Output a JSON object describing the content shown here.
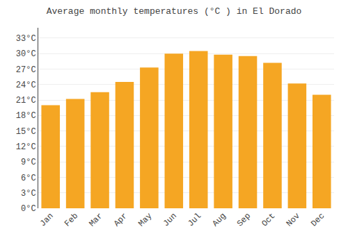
{
  "chart_data": {
    "type": "bar",
    "title": "Average monthly temperatures (°C ) in El Dorado",
    "categories": [
      "Jan",
      "Feb",
      "Mar",
      "Apr",
      "May",
      "Jun",
      "Jul",
      "Aug",
      "Sep",
      "Oct",
      "Nov",
      "Dec"
    ],
    "values": [
      20.0,
      21.2,
      22.5,
      24.5,
      27.3,
      30.0,
      30.5,
      29.8,
      29.5,
      28.2,
      24.2,
      22.0
    ],
    "color": "#F5A623",
    "ylim": [
      0,
      35
    ],
    "yticks": [
      {
        "value": 0,
        "label": "0°C"
      },
      {
        "value": 3,
        "label": "3°C"
      },
      {
        "value": 6,
        "label": "6°C"
      },
      {
        "value": 9,
        "label": "9°C"
      },
      {
        "value": 12,
        "label": "12°C"
      },
      {
        "value": 15,
        "label": "15°C"
      },
      {
        "value": 18,
        "label": "18°C"
      },
      {
        "value": 21,
        "label": "21°C"
      },
      {
        "value": 24,
        "label": "24°C"
      },
      {
        "value": 27,
        "label": "27°C"
      },
      {
        "value": 30,
        "label": "30°C"
      },
      {
        "value": 33,
        "label": "33°C"
      }
    ],
    "grid": true
  }
}
